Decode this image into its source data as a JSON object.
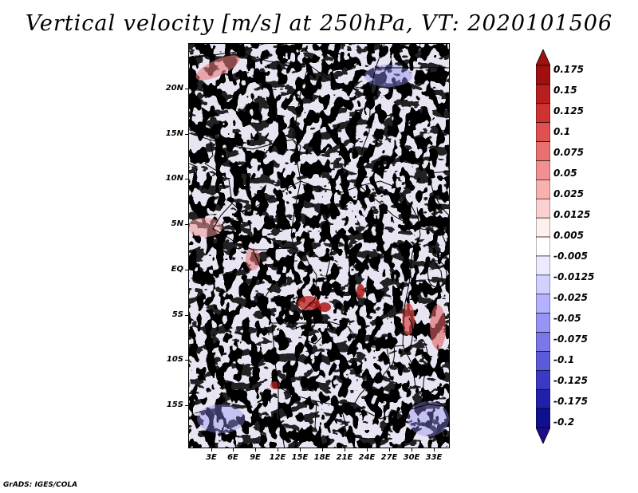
{
  "title": "Vertical velocity [m/s] at 250hPa, VT: 2020101506",
  "credit": "GrADS: IGES/COLA",
  "map": {
    "lat_labels": [
      "20N",
      "15N",
      "10N",
      "5N",
      "EQ",
      "5S",
      "10S",
      "15S"
    ],
    "lon_labels": [
      "3E",
      "6E",
      "9E",
      "12E",
      "15E",
      "18E",
      "21E",
      "24E",
      "27E",
      "30E",
      "33E"
    ]
  },
  "colorbar": {
    "labels": [
      "0.175",
      "0.15",
      "0.125",
      "0.1",
      "0.075",
      "0.05",
      "0.025",
      "0.0125",
      "0.005",
      "-0.005",
      "-0.0125",
      "-0.025",
      "-0.05",
      "-0.075",
      "-0.1",
      "-0.125",
      "-0.175",
      "-0.2"
    ],
    "colors": [
      "#a01010",
      "#b81e1e",
      "#d03232",
      "#e05050",
      "#e87070",
      "#f09090",
      "#f8b0b0",
      "#fcd0d0",
      "#fff0f0",
      "#ffffff",
      "#eceaff",
      "#d2d0ff",
      "#b4b2ff",
      "#9694f4",
      "#7a78e8",
      "#5c5ad8",
      "#3c3ac4",
      "#2020ac",
      "#10108c"
    ],
    "top_arrow_color": "#a01010",
    "bottom_arrow_color": "#1a0e8c"
  },
  "palette": {
    "base": "#f3eef6",
    "blue_light": "#c8c6f8",
    "blue_mid": "#8e8cf0",
    "red_light": "#f4b8b8",
    "red_mid": "#e88080",
    "red_dark": "#b01818"
  }
}
